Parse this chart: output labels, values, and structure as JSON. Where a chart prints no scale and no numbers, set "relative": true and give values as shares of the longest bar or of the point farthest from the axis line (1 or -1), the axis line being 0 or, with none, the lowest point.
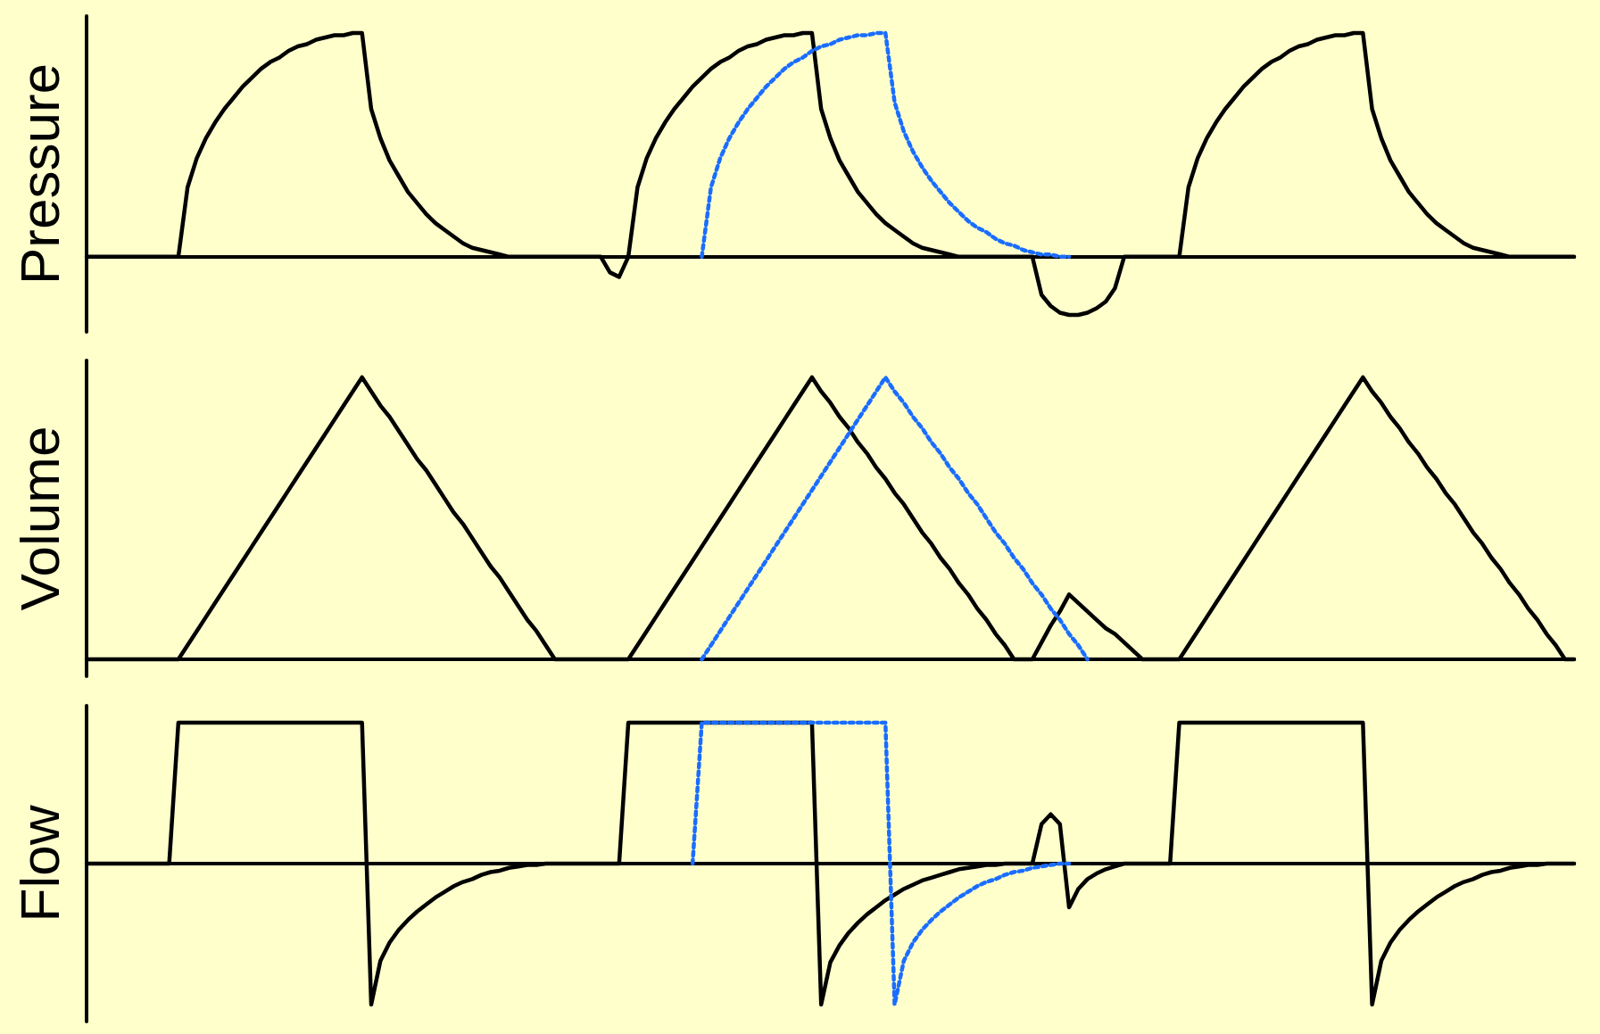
{
  "chart_data": [
    {
      "type": "line",
      "ylabel": "Pressure",
      "relative": true,
      "grid": false,
      "categories": [
        null,
        null,
        null,
        null,
        null,
        null,
        null,
        null,
        null,
        null,
        null,
        null,
        null,
        null,
        null,
        null,
        null,
        null,
        null,
        null,
        null,
        null,
        null,
        null,
        null,
        null,
        null,
        null,
        null,
        null,
        null,
        null,
        null,
        null,
        null,
        null,
        null,
        null,
        null,
        null,
        null,
        null,
        null,
        null,
        null,
        null,
        null,
        null,
        null,
        null,
        null,
        null,
        null,
        null,
        null,
        null,
        null,
        null,
        null,
        null,
        null,
        null,
        null,
        null,
        null,
        null,
        null,
        null,
        null,
        null,
        null,
        null,
        null,
        null,
        null,
        null,
        null,
        null,
        null,
        null,
        null,
        null,
        null,
        null,
        null,
        null,
        null,
        null,
        null,
        null,
        null,
        null,
        null,
        null,
        null,
        null,
        null,
        null,
        null,
        null,
        null,
        null,
        null,
        null,
        null,
        null,
        null,
        null,
        null,
        null,
        null,
        null,
        null,
        null,
        null,
        null,
        null,
        null,
        null,
        null,
        null,
        null,
        null,
        null,
        null,
        null,
        null,
        null,
        null,
        null,
        null,
        null,
        null,
        null,
        null,
        null,
        null,
        null,
        null,
        null,
        null,
        null,
        null,
        null,
        null,
        null,
        null,
        null,
        null,
        null,
        null,
        null,
        null,
        null,
        null,
        null,
        null,
        null,
        null,
        null,
        null,
        null,
        null
      ],
      "series": [
        {
          "color": "#000000",
          "line_style": "solid",
          "values": [
            0,
            0,
            0,
            0,
            0,
            0,
            0,
            0,
            0,
            0,
            0,
            0.31,
            0.44,
            0.53,
            0.6,
            0.66,
            0.71,
            0.76,
            0.8,
            0.84,
            0.87,
            0.89,
            0.92,
            0.94,
            0.95,
            0.97,
            0.98,
            0.99,
            0.99,
            1,
            1,
            0.66,
            0.53,
            0.43,
            0.36,
            0.29,
            0.24,
            0.19,
            0.15,
            0.12,
            0.09,
            0.06,
            0.04,
            0.03,
            0.02,
            0.01,
            0,
            0,
            0,
            0,
            0,
            0,
            0,
            0,
            0,
            0,
            0,
            -0.07,
            -0.09,
            0,
            0.31,
            0.44,
            0.53,
            0.6,
            0.66,
            0.71,
            0.76,
            0.8,
            0.84,
            0.87,
            0.89,
            0.92,
            0.94,
            0.95,
            0.97,
            0.98,
            0.99,
            0.99,
            1,
            1,
            0.66,
            0.53,
            0.43,
            0.36,
            0.29,
            0.24,
            0.19,
            0.15,
            0.12,
            0.09,
            0.06,
            0.04,
            0.03,
            0.02,
            0.01,
            0,
            0,
            0,
            0,
            0,
            0,
            0,
            0,
            0,
            -0.17,
            -0.22,
            -0.25,
            -0.26,
            -0.26,
            -0.25,
            -0.23,
            -0.2,
            -0.14,
            0,
            0,
            0,
            0,
            0,
            0,
            0,
            0.31,
            0.44,
            0.53,
            0.6,
            0.66,
            0.71,
            0.76,
            0.8,
            0.84,
            0.87,
            0.89,
            0.92,
            0.94,
            0.95,
            0.97,
            0.98,
            0.99,
            0.99,
            1,
            1,
            0.66,
            0.53,
            0.43,
            0.36,
            0.29,
            0.24,
            0.19,
            0.15,
            0.12,
            0.09,
            0.06,
            0.04,
            0.03,
            0.02,
            0.01,
            0,
            0,
            0,
            0,
            0,
            0,
            0,
            0
          ]
        },
        {
          "color": "#1a6dff",
          "line_style": "dotted",
          "values": [
            null,
            null,
            null,
            null,
            null,
            null,
            null,
            null,
            null,
            null,
            null,
            null,
            null,
            null,
            null,
            null,
            null,
            null,
            null,
            null,
            null,
            null,
            null,
            null,
            null,
            null,
            null,
            null,
            null,
            null,
            null,
            null,
            null,
            null,
            null,
            null,
            null,
            null,
            null,
            null,
            null,
            null,
            null,
            null,
            null,
            null,
            null,
            null,
            null,
            null,
            null,
            null,
            null,
            null,
            null,
            null,
            null,
            null,
            null,
            null,
            null,
            null,
            null,
            null,
            null,
            null,
            null,
            0,
            0.31,
            0.44,
            0.53,
            0.6,
            0.66,
            0.71,
            0.76,
            0.8,
            0.84,
            0.87,
            0.89,
            0.92,
            0.94,
            0.95,
            0.97,
            0.98,
            0.99,
            0.99,
            1,
            1,
            0.69,
            0.56,
            0.47,
            0.4,
            0.34,
            0.29,
            0.24,
            0.2,
            0.16,
            0.13,
            0.11,
            0.08,
            0.06,
            0.05,
            0.03,
            0.02,
            0.01,
            0.01,
            0,
            0,
            null,
            null,
            null,
            null,
            null,
            null,
            null,
            null,
            null,
            null,
            null,
            null,
            null,
            null,
            null,
            null,
            null,
            null,
            null,
            null,
            null,
            null,
            null,
            null,
            null,
            null,
            null,
            null,
            null,
            null,
            null,
            null,
            null,
            null,
            null,
            null,
            null,
            null,
            null,
            null,
            null,
            null,
            null,
            null,
            null,
            null,
            null,
            null,
            null,
            null,
            null,
            null,
            null,
            null,
            null
          ]
        }
      ]
    },
    {
      "type": "line",
      "ylabel": "Volume",
      "relative": true,
      "grid": false,
      "categories": [
        null,
        null,
        null,
        null,
        null,
        null,
        null,
        null,
        null,
        null,
        null,
        null,
        null,
        null,
        null,
        null,
        null,
        null,
        null,
        null,
        null,
        null,
        null,
        null,
        null,
        null,
        null,
        null,
        null,
        null,
        null,
        null,
        null,
        null,
        null,
        null,
        null,
        null,
        null,
        null,
        null,
        null,
        null,
        null,
        null,
        null,
        null,
        null,
        null,
        null,
        null,
        null,
        null,
        null,
        null,
        null,
        null,
        null,
        null,
        null,
        null,
        null,
        null,
        null,
        null,
        null,
        null,
        null,
        null,
        null,
        null,
        null,
        null,
        null,
        null,
        null,
        null,
        null,
        null,
        null,
        null,
        null,
        null,
        null,
        null,
        null,
        null,
        null,
        null,
        null,
        null,
        null,
        null,
        null,
        null,
        null,
        null,
        null,
        null,
        null,
        null,
        null,
        null,
        null,
        null,
        null,
        null,
        null,
        null,
        null,
        null,
        null,
        null,
        null,
        null,
        null,
        null,
        null,
        null,
        null,
        null,
        null,
        null,
        null,
        null,
        null,
        null,
        null,
        null,
        null,
        null,
        null,
        null,
        null,
        null,
        null,
        null,
        null,
        null,
        null,
        null,
        null,
        null,
        null,
        null,
        null,
        null,
        null,
        null,
        null,
        null,
        null,
        null,
        null,
        null,
        null,
        null,
        null,
        null,
        null,
        null,
        null,
        null
      ],
      "series": [
        {
          "color": "#000000",
          "line_style": "solid",
          "values": [
            0,
            0,
            0,
            0,
            0,
            0,
            0,
            0,
            0,
            0,
            0,
            0.05,
            0.1,
            0.15,
            0.2,
            0.25,
            0.3,
            0.35,
            0.4,
            0.45,
            0.5,
            0.55,
            0.6,
            0.65,
            0.7,
            0.75,
            0.8,
            0.85,
            0.9,
            0.95,
            1,
            0.95,
            0.9,
            0.86,
            0.81,
            0.76,
            0.71,
            0.67,
            0.62,
            0.57,
            0.52,
            0.48,
            0.43,
            0.38,
            0.33,
            0.29,
            0.24,
            0.19,
            0.14,
            0.1,
            0.05,
            0,
            0,
            0,
            0,
            0,
            0,
            0,
            0,
            0,
            0.05,
            0.1,
            0.15,
            0.2,
            0.25,
            0.3,
            0.35,
            0.4,
            0.45,
            0.5,
            0.55,
            0.6,
            0.65,
            0.7,
            0.75,
            0.8,
            0.85,
            0.9,
            0.95,
            1,
            0.95,
            0.91,
            0.86,
            0.82,
            0.77,
            0.73,
            0.68,
            0.64,
            0.59,
            0.55,
            0.5,
            0.45,
            0.41,
            0.36,
            0.32,
            0.27,
            0.23,
            0.18,
            0.14,
            0.09,
            0.05,
            0,
            0,
            0,
            0.06,
            0.12,
            0.17,
            0.23,
            0.2,
            0.17,
            0.14,
            0.11,
            0.09,
            0.06,
            0.03,
            0,
            0,
            0,
            0,
            0,
            0.05,
            0.1,
            0.15,
            0.2,
            0.25,
            0.3,
            0.35,
            0.4,
            0.45,
            0.5,
            0.55,
            0.6,
            0.65,
            0.7,
            0.75,
            0.8,
            0.85,
            0.9,
            0.95,
            1,
            0.95,
            0.91,
            0.86,
            0.82,
            0.77,
            0.73,
            0.68,
            0.64,
            0.59,
            0.55,
            0.5,
            0.45,
            0.41,
            0.36,
            0.32,
            0.27,
            0.23,
            0.18,
            0.14,
            0.09,
            0.05,
            0,
            0
          ]
        },
        {
          "color": "#1a6dff",
          "line_style": "dotted",
          "values": [
            null,
            null,
            null,
            null,
            null,
            null,
            null,
            null,
            null,
            null,
            null,
            null,
            null,
            null,
            null,
            null,
            null,
            null,
            null,
            null,
            null,
            null,
            null,
            null,
            null,
            null,
            null,
            null,
            null,
            null,
            null,
            null,
            null,
            null,
            null,
            null,
            null,
            null,
            null,
            null,
            null,
            null,
            null,
            null,
            null,
            null,
            null,
            null,
            null,
            null,
            null,
            null,
            null,
            null,
            null,
            null,
            null,
            null,
            null,
            null,
            null,
            null,
            null,
            null,
            null,
            null,
            null,
            0,
            0.05,
            0.1,
            0.15,
            0.2,
            0.25,
            0.3,
            0.35,
            0.4,
            0.45,
            0.5,
            0.55,
            0.6,
            0.65,
            0.7,
            0.75,
            0.8,
            0.85,
            0.9,
            0.95,
            1,
            0.95,
            0.91,
            0.86,
            0.82,
            0.77,
            0.73,
            0.68,
            0.64,
            0.59,
            0.55,
            0.5,
            0.45,
            0.41,
            0.36,
            0.32,
            0.27,
            0.23,
            0.18,
            0.14,
            0.09,
            0.05,
            0,
            null,
            null,
            null,
            null,
            null,
            null,
            null,
            null,
            null,
            null,
            null,
            null,
            null,
            null,
            null,
            null,
            null,
            null,
            null,
            null,
            null,
            null,
            null,
            null,
            null,
            null,
            null,
            null,
            null,
            null,
            null,
            null,
            null,
            null,
            null,
            null,
            null,
            null,
            null,
            null,
            null,
            null,
            null,
            null,
            null,
            null,
            null,
            null,
            null,
            null,
            null,
            null,
            null
          ]
        }
      ]
    },
    {
      "type": "line",
      "ylabel": "Flow",
      "relative": true,
      "grid": false,
      "categories": [
        null,
        null,
        null,
        null,
        null,
        null,
        null,
        null,
        null,
        null,
        null,
        null,
        null,
        null,
        null,
        null,
        null,
        null,
        null,
        null,
        null,
        null,
        null,
        null,
        null,
        null,
        null,
        null,
        null,
        null,
        null,
        null,
        null,
        null,
        null,
        null,
        null,
        null,
        null,
        null,
        null,
        null,
        null,
        null,
        null,
        null,
        null,
        null,
        null,
        null,
        null,
        null,
        null,
        null,
        null,
        null,
        null,
        null,
        null,
        null,
        null,
        null,
        null,
        null,
        null,
        null,
        null,
        null,
        null,
        null,
        null,
        null,
        null,
        null,
        null,
        null,
        null,
        null,
        null,
        null,
        null,
        null,
        null,
        null,
        null,
        null,
        null,
        null,
        null,
        null,
        null,
        null,
        null,
        null,
        null,
        null,
        null,
        null,
        null,
        null,
        null,
        null,
        null,
        null,
        null,
        null,
        null,
        null,
        null,
        null,
        null,
        null,
        null,
        null,
        null,
        null,
        null,
        null,
        null,
        null,
        null,
        null,
        null,
        null,
        null,
        null,
        null,
        null,
        null,
        null,
        null,
        null,
        null,
        null,
        null,
        null,
        null,
        null,
        null,
        null,
        null,
        null,
        null,
        null,
        null,
        null,
        null,
        null,
        null,
        null,
        null,
        null,
        null,
        null,
        null,
        null,
        null,
        null,
        null,
        null,
        null,
        null,
        null
      ],
      "series": [
        {
          "color": "#000000",
          "line_style": "solid",
          "values": [
            0,
            0,
            0,
            0,
            0,
            0,
            0,
            0,
            0,
            0,
            1,
            1,
            1,
            1,
            1,
            1,
            1,
            1,
            1,
            1,
            1,
            1,
            1,
            1,
            1,
            1,
            1,
            1,
            1,
            1,
            1,
            -1,
            -0.69,
            -0.56,
            -0.47,
            -0.4,
            -0.34,
            -0.29,
            -0.24,
            -0.2,
            -0.16,
            -0.13,
            -0.11,
            -0.08,
            -0.06,
            -0.05,
            -0.03,
            -0.02,
            -0.01,
            -0.01,
            0,
            0,
            0,
            0,
            0,
            0,
            0,
            0,
            0,
            1,
            1,
            1,
            1,
            1,
            1,
            1,
            1,
            1,
            1,
            1,
            1,
            1,
            1,
            1,
            1,
            1,
            1,
            1,
            1,
            1,
            -1,
            -0.7,
            -0.58,
            -0.49,
            -0.42,
            -0.36,
            -0.31,
            -0.26,
            -0.22,
            -0.18,
            -0.15,
            -0.12,
            -0.1,
            -0.08,
            -0.06,
            -0.04,
            -0.03,
            -0.02,
            -0.01,
            -0.01,
            0,
            0,
            0,
            0,
            0.28,
            0.35,
            0.28,
            -0.31,
            -0.18,
            -0.11,
            -0.07,
            -0.04,
            -0.02,
            0,
            0,
            0,
            0,
            0,
            0,
            1,
            1,
            1,
            1,
            1,
            1,
            1,
            1,
            1,
            1,
            1,
            1,
            1,
            1,
            1,
            1,
            1,
            1,
            1,
            1,
            1,
            -1,
            -0.69,
            -0.56,
            -0.47,
            -0.4,
            -0.34,
            -0.29,
            -0.24,
            -0.2,
            -0.16,
            -0.13,
            -0.11,
            -0.08,
            -0.06,
            -0.05,
            -0.03,
            -0.02,
            -0.01,
            -0.01,
            0,
            0,
            0,
            0
          ]
        },
        {
          "color": "#1a6dff",
          "line_style": "dotted",
          "values": [
            null,
            null,
            null,
            null,
            null,
            null,
            null,
            null,
            null,
            null,
            null,
            null,
            null,
            null,
            null,
            null,
            null,
            null,
            null,
            null,
            null,
            null,
            null,
            null,
            null,
            null,
            null,
            null,
            null,
            null,
            null,
            null,
            null,
            null,
            null,
            null,
            null,
            null,
            null,
            null,
            null,
            null,
            null,
            null,
            null,
            null,
            null,
            null,
            null,
            null,
            null,
            null,
            null,
            null,
            null,
            null,
            null,
            null,
            null,
            null,
            null,
            null,
            null,
            null,
            null,
            null,
            0,
            1,
            1,
            1,
            1,
            1,
            1,
            1,
            1,
            1,
            1,
            1,
            1,
            1,
            1,
            1,
            1,
            1,
            1,
            1,
            1,
            1,
            -1,
            -0.69,
            -0.56,
            -0.47,
            -0.4,
            -0.34,
            -0.29,
            -0.24,
            -0.2,
            -0.16,
            -0.13,
            -0.11,
            -0.08,
            -0.06,
            -0.05,
            -0.03,
            -0.02,
            -0.01,
            0,
            0,
            null,
            null,
            null,
            null,
            null,
            null,
            null,
            null,
            null,
            null,
            null,
            null,
            null,
            null,
            null,
            null,
            null,
            null,
            null,
            null,
            null,
            null,
            null,
            null,
            null,
            null,
            null,
            null,
            null,
            null,
            null,
            null,
            null,
            null,
            null,
            null,
            null,
            null,
            null,
            null,
            null,
            null,
            null,
            null,
            null,
            null,
            null,
            null,
            null,
            null,
            null,
            null,
            null,
            null,
            null
          ]
        }
      ]
    }
  ]
}
